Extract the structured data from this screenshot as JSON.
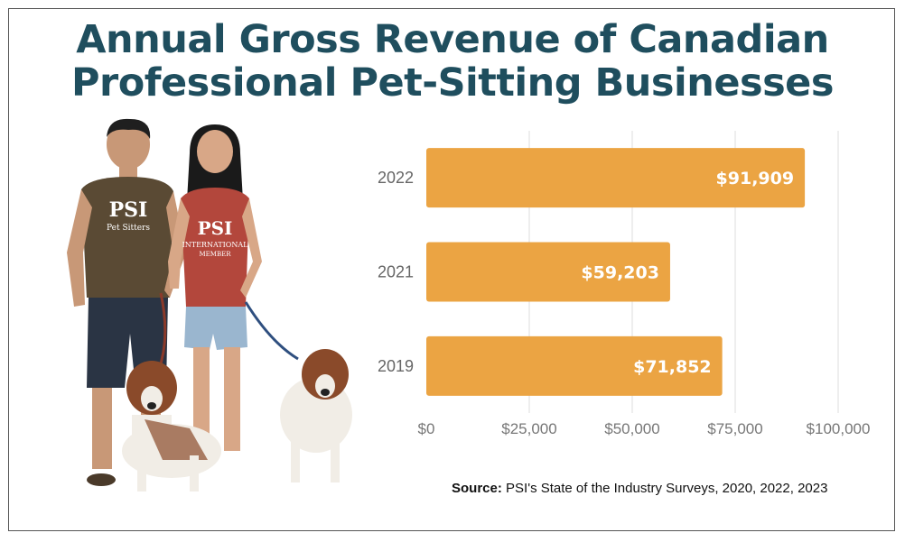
{
  "title_line1": "Annual Gross Revenue of Canadian",
  "title_line2": "Professional Pet-Sitting Businesses",
  "source_label": "Source:",
  "source_text": "PSI's State of the Industry Surveys, 2020, 2022, 2023",
  "photo": {
    "shirt_logo": "PSI",
    "shirt_text": "Pet Sitters",
    "shirt_text2": "INTERNATIONAL",
    "shirt_text3": "MEMBER"
  },
  "colors": {
    "bar": "#eba443",
    "title": "#1f4e5e",
    "grid": "#dddddd"
  },
  "chart_data": {
    "type": "bar",
    "orientation": "horizontal",
    "categories": [
      "2022",
      "2021",
      "2019"
    ],
    "values": [
      91909,
      59203,
      71852
    ],
    "value_labels": [
      "$91,909",
      "$59,203",
      "$71,852"
    ],
    "x_ticks": [
      0,
      25000,
      50000,
      75000,
      100000
    ],
    "x_tick_labels": [
      "$0",
      "$25,000",
      "$50,000",
      "$75,000",
      "$100,000"
    ],
    "xlim": [
      0,
      100000
    ],
    "grid": true
  }
}
